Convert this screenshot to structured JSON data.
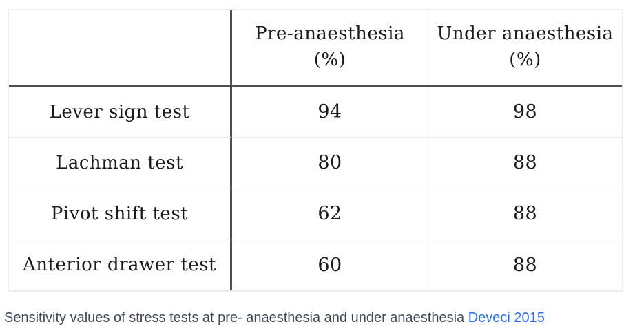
{
  "table": {
    "headers": [
      {
        "line1": "Pre-anaesthesia",
        "line2": "(%)"
      },
      {
        "line1": "Under anaesthesia",
        "line2": "(%)"
      }
    ],
    "rows": [
      {
        "label": "Lever sign test",
        "pre": "94",
        "under": "98"
      },
      {
        "label": "Lachman test",
        "pre": "80",
        "under": "88"
      },
      {
        "label": "Pivot shift test",
        "pre": "62",
        "under": "88"
      },
      {
        "label": "Anterior drawer test",
        "pre": "60",
        "under": "88"
      }
    ]
  },
  "caption": {
    "text": "Sensitivity values of stress tests at pre- anaesthesia and under anaesthesia ",
    "link_text": "Deveci 2015"
  },
  "colors": {
    "dark_line": "#4e4e4e",
    "light_line": "#ececec",
    "table_text": "#1a1a1a",
    "caption_text": "#404a57",
    "link": "#2f6de0"
  },
  "chart_data": {
    "type": "table",
    "categories": [
      "Lever sign test",
      "Lachman test",
      "Pivot shift test",
      "Anterior drawer test"
    ],
    "series": [
      {
        "name": "Pre-anaesthesia (%)",
        "values": [
          94,
          80,
          62,
          60
        ]
      },
      {
        "name": "Under anaesthesia (%)",
        "values": [
          98,
          88,
          88,
          88
        ]
      }
    ],
    "title": "Sensitivity values of stress tests at pre- anaesthesia and under anaesthesia",
    "source_link": "Deveci 2015"
  }
}
